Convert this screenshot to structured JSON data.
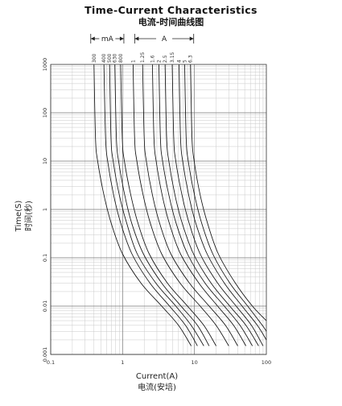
{
  "title": "Time-Current Characteristics",
  "subtitle": "电流-时间曲线图",
  "chart_data": {
    "type": "line",
    "title": "Time-Current Characteristics",
    "subtitle": "电流-时间曲线图",
    "xlabel": "Current(A)",
    "xlabel_cn": "电流(安培)",
    "ylabel": "Time(S)",
    "ylabel_cn": "时间(秒)",
    "xscale": "log",
    "yscale": "log",
    "xlim": [
      0.1,
      100
    ],
    "ylim": [
      0.001,
      1000
    ],
    "x_ticks": [
      "0.1",
      "1",
      "10",
      "100"
    ],
    "y_ticks": [
      "0.001",
      "0.01",
      "0.1",
      "1",
      "10",
      "100",
      "1000"
    ],
    "grid": true,
    "range_groups": [
      {
        "label": "mA",
        "ratings": [
          "300",
          "400",
          "500",
          "630",
          "800"
        ]
      },
      {
        "label": "A",
        "ratings": [
          "1",
          "1.25",
          "1.6",
          "2",
          "2.5",
          "3.15",
          "4",
          "5",
          "6.3"
        ]
      }
    ],
    "series": [
      {
        "rating": "300",
        "points": [
          [
            0.4,
            1000
          ],
          [
            0.42,
            30
          ],
          [
            0.45,
            10
          ],
          [
            0.55,
            2
          ],
          [
            0.7,
            0.5
          ],
          [
            1.0,
            0.12
          ],
          [
            1.8,
            0.03
          ],
          [
            3.5,
            0.01
          ],
          [
            6,
            0.004
          ],
          [
            9,
            0.0015
          ]
        ]
      },
      {
        "rating": "400",
        "points": [
          [
            0.55,
            1000
          ],
          [
            0.58,
            30
          ],
          [
            0.62,
            10
          ],
          [
            0.75,
            2
          ],
          [
            0.95,
            0.5
          ],
          [
            1.35,
            0.12
          ],
          [
            2.4,
            0.03
          ],
          [
            4.5,
            0.01
          ],
          [
            7.5,
            0.004
          ],
          [
            11,
            0.0015
          ]
        ]
      },
      {
        "rating": "500",
        "points": [
          [
            0.66,
            1000
          ],
          [
            0.69,
            30
          ],
          [
            0.74,
            10
          ],
          [
            0.9,
            2
          ],
          [
            1.15,
            0.5
          ],
          [
            1.6,
            0.12
          ],
          [
            2.9,
            0.03
          ],
          [
            5.5,
            0.01
          ],
          [
            9,
            0.004
          ],
          [
            13.5,
            0.0015
          ]
        ]
      },
      {
        "rating": "630",
        "points": [
          [
            0.78,
            1000
          ],
          [
            0.82,
            30
          ],
          [
            0.88,
            10
          ],
          [
            1.07,
            2
          ],
          [
            1.35,
            0.5
          ],
          [
            1.95,
            0.12
          ],
          [
            3.5,
            0.03
          ],
          [
            6.5,
            0.01
          ],
          [
            11,
            0.004
          ],
          [
            16,
            0.0015
          ]
        ]
      },
      {
        "rating": "800",
        "points": [
          [
            0.94,
            1000
          ],
          [
            0.99,
            30
          ],
          [
            1.06,
            10
          ],
          [
            1.3,
            2
          ],
          [
            1.65,
            0.5
          ],
          [
            2.35,
            0.12
          ],
          [
            4.2,
            0.03
          ],
          [
            8,
            0.01
          ],
          [
            13.5,
            0.004
          ],
          [
            20,
            0.0015
          ]
        ]
      },
      {
        "rating": "1",
        "points": [
          [
            1.4,
            1000
          ],
          [
            1.47,
            30
          ],
          [
            1.58,
            10
          ],
          [
            1.93,
            2
          ],
          [
            2.45,
            0.5
          ],
          [
            3.5,
            0.12
          ],
          [
            6.3,
            0.03
          ],
          [
            12,
            0.01
          ],
          [
            20,
            0.004
          ],
          [
            30,
            0.0015
          ]
        ]
      },
      {
        "rating": "1.25",
        "points": [
          [
            1.9,
            1000
          ],
          [
            2.0,
            30
          ],
          [
            2.14,
            10
          ],
          [
            2.6,
            2
          ],
          [
            3.3,
            0.5
          ],
          [
            4.7,
            0.12
          ],
          [
            8.5,
            0.03
          ],
          [
            16,
            0.01
          ],
          [
            27,
            0.004
          ],
          [
            40,
            0.0015
          ]
        ]
      },
      {
        "rating": "1.6",
        "points": [
          [
            2.6,
            1000
          ],
          [
            2.73,
            30
          ],
          [
            2.93,
            10
          ],
          [
            3.55,
            2
          ],
          [
            4.5,
            0.5
          ],
          [
            6.4,
            0.12
          ],
          [
            11.5,
            0.03
          ],
          [
            21,
            0.01
          ],
          [
            35,
            0.004
          ],
          [
            52,
            0.0015
          ]
        ]
      },
      {
        "rating": "2",
        "points": [
          [
            3.2,
            1000
          ],
          [
            3.36,
            30
          ],
          [
            3.6,
            10
          ],
          [
            4.4,
            2
          ],
          [
            5.6,
            0.5
          ],
          [
            8,
            0.12
          ],
          [
            14,
            0.03
          ],
          [
            26,
            0.01
          ],
          [
            43,
            0.004
          ],
          [
            64,
            0.0015
          ]
        ]
      },
      {
        "rating": "2.5",
        "points": [
          [
            3.9,
            1000
          ],
          [
            4.1,
            30
          ],
          [
            4.4,
            10
          ],
          [
            5.35,
            2
          ],
          [
            6.8,
            0.5
          ],
          [
            9.7,
            0.12
          ],
          [
            17,
            0.03
          ],
          [
            31,
            0.01
          ],
          [
            52,
            0.004
          ],
          [
            78,
            0.0015
          ]
        ]
      },
      {
        "rating": "3.15",
        "points": [
          [
            4.9,
            1000
          ],
          [
            5.15,
            30
          ],
          [
            5.5,
            10
          ],
          [
            6.7,
            2
          ],
          [
            8.5,
            0.5
          ],
          [
            12,
            0.12
          ],
          [
            21,
            0.03
          ],
          [
            38,
            0.01
          ],
          [
            62,
            0.004
          ],
          [
            90,
            0.0015
          ]
        ]
      },
      {
        "rating": "4",
        "points": [
          [
            6.1,
            1000
          ],
          [
            6.4,
            30
          ],
          [
            6.85,
            10
          ],
          [
            8.3,
            2
          ],
          [
            10.5,
            0.5
          ],
          [
            15,
            0.12
          ],
          [
            26,
            0.03
          ],
          [
            46,
            0.01
          ],
          [
            75,
            0.004
          ],
          [
            100,
            0.002
          ]
        ]
      },
      {
        "rating": "5",
        "points": [
          [
            7.3,
            1000
          ],
          [
            7.66,
            30
          ],
          [
            8.2,
            10
          ],
          [
            10,
            2
          ],
          [
            12.7,
            0.5
          ],
          [
            18,
            0.12
          ],
          [
            31,
            0.03
          ],
          [
            55,
            0.01
          ],
          [
            88,
            0.004
          ],
          [
            100,
            0.003
          ]
        ]
      },
      {
        "rating": "6.3",
        "points": [
          [
            8.8,
            1000
          ],
          [
            9.25,
            30
          ],
          [
            9.9,
            10
          ],
          [
            12,
            2
          ],
          [
            15.3,
            0.5
          ],
          [
            21.5,
            0.12
          ],
          [
            37,
            0.03
          ],
          [
            64,
            0.01
          ],
          [
            100,
            0.005
          ]
        ]
      }
    ]
  }
}
